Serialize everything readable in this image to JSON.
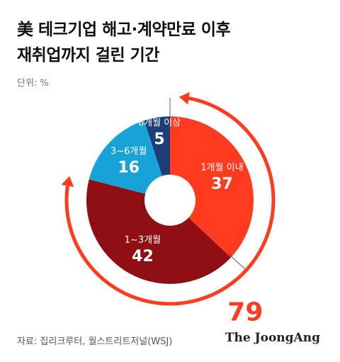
{
  "title": {
    "line1": "美 테크기업 해고·계약만료 이후",
    "line2": "재취업까지 걸린 기간"
  },
  "unit": "단위: %",
  "chart_data": {
    "type": "pie",
    "donut": true,
    "slices": [
      {
        "label": "1개월 이내",
        "value": 37,
        "color": "#ff3b1f"
      },
      {
        "label": "1~3개월",
        "value": 42,
        "color": "#8f0f14"
      },
      {
        "label": "3~6개월",
        "value": 16,
        "color": "#17a2d8"
      },
      {
        "label": "6개월 이상",
        "value": 5,
        "color": "#1c3f7a"
      }
    ],
    "annotation": {
      "value": "79",
      "color": "#ff3b1f"
    }
  },
  "footer": {
    "source": "자료: 집리크루터, 월스트리트저널(WSJ)",
    "logo": "The JoongAng"
  }
}
